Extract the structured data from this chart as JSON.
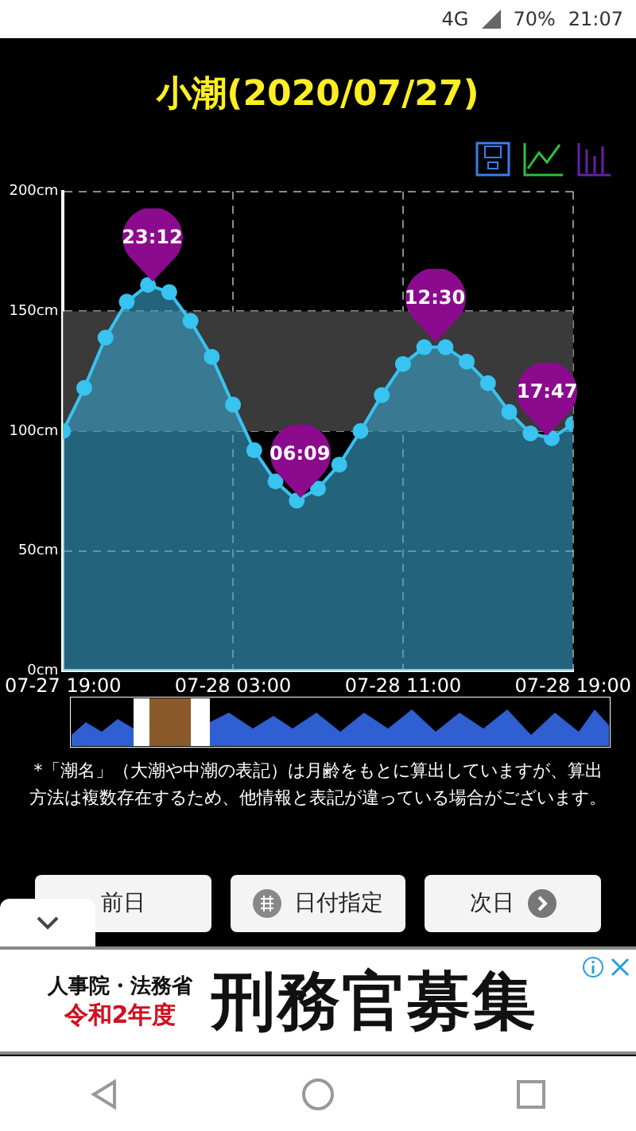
{
  "chart_data": {
    "type": "area",
    "title": "小潮(2020/07/27)",
    "x": [
      "2020-07-27T19:00",
      "2020-07-27T20:00",
      "2020-07-27T21:00",
      "2020-07-27T22:00",
      "2020-07-27T23:00",
      "2020-07-28T00:00",
      "2020-07-28T01:00",
      "2020-07-28T02:00",
      "2020-07-28T03:00",
      "2020-07-28T04:00",
      "2020-07-28T05:00",
      "2020-07-28T06:00",
      "2020-07-28T07:00",
      "2020-07-28T08:00",
      "2020-07-28T09:00",
      "2020-07-28T10:00",
      "2020-07-28T11:00",
      "2020-07-28T12:00",
      "2020-07-28T13:00",
      "2020-07-28T14:00",
      "2020-07-28T15:00",
      "2020-07-28T16:00",
      "2020-07-28T17:00",
      "2020-07-28T18:00",
      "2020-07-28T19:00"
    ],
    "series": [
      {
        "color": "#38c3f0",
        "values": [
          100,
          118,
          139,
          154,
          161,
          158,
          146,
          131,
          111,
          92,
          79,
          71,
          76,
          86,
          100,
          115,
          128,
          135,
          135,
          129,
          120,
          108,
          99,
          97,
          103
        ]
      }
    ],
    "xlim": [
      "2020-07-27T19:00",
      "2020-07-28T19:00"
    ],
    "xticks": [
      {
        "value": "2020-07-27T19:00",
        "label": "07-27 19:00"
      },
      {
        "value": "2020-07-28T03:00",
        "label": "07-28 03:00"
      },
      {
        "value": "2020-07-28T11:00",
        "label": "07-28 11:00"
      },
      {
        "value": "2020-07-28T19:00",
        "label": "07-28 19:00"
      }
    ],
    "ylim": [
      0,
      200
    ],
    "yticks": [
      {
        "value": 0,
        "label": "0cm"
      },
      {
        "value": 50,
        "label": "50cm"
      },
      {
        "value": 100,
        "label": "100cm"
      },
      {
        "value": 150,
        "label": "150cm"
      },
      {
        "value": 200,
        "label": "200cm"
      }
    ],
    "grid": true,
    "marker": "circle",
    "line_style": "solid",
    "bands": [
      {
        "axis": "y",
        "from": 100,
        "to": 150,
        "color": "#3a3a3a"
      }
    ],
    "annotations": [
      {
        "text": "23:12",
        "x": "2020-07-27T23:12",
        "y": 161
      },
      {
        "text": "06:09",
        "x": "2020-07-28T06:09",
        "y": 71
      },
      {
        "text": "12:30",
        "x": "2020-07-28T12:30",
        "y": 136
      },
      {
        "text": "17:47",
        "x": "2020-07-28T17:47",
        "y": 97
      },
      "*「潮名」（大潮や中潮の表記）は月齢をもとに算出していますが、算出方法は複数存在するため、他情報と表記が違っている場合がございます。",
      "前日",
      "日付指定",
      "次日",
      "人事院・法務省",
      "令和2年度",
      "刑務官募集",
      "4G",
      "70%",
      "21:07"
    ]
  }
}
